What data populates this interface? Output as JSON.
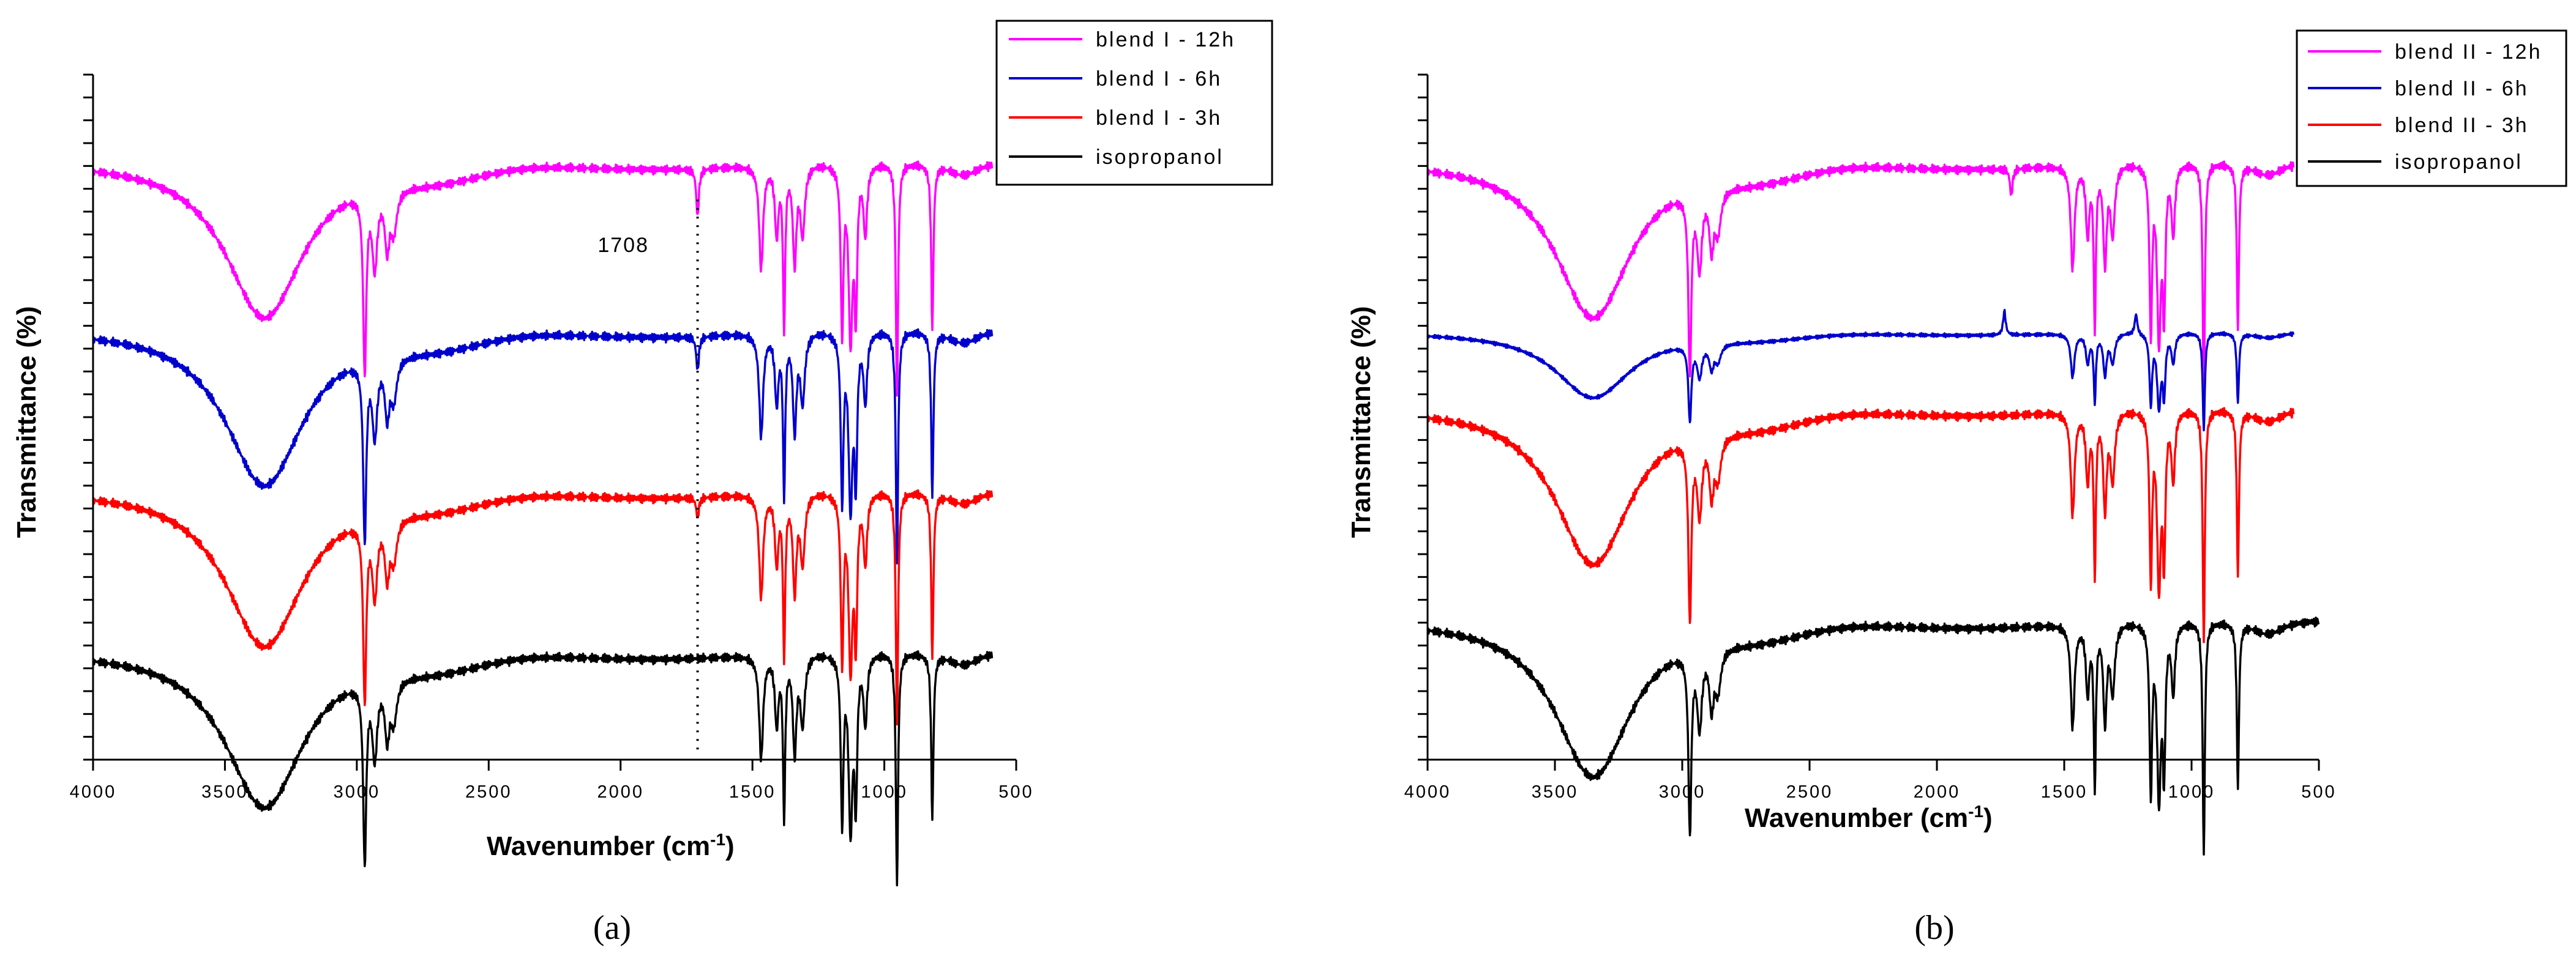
{
  "figure": {
    "panels": [
      {
        "id": "a",
        "label": "(a)"
      },
      {
        "id": "b",
        "label": "(b)"
      }
    ]
  },
  "chart_data": [
    {
      "type": "line",
      "panel": "(a)",
      "xlabel": "Wavenumber (cm-1)",
      "xlabel_main": "Wavenumber (cm",
      "xlabel_sup": "-1",
      "xlabel_end": ")",
      "ylabel": "Transmittance (%)",
      "xlim": [
        4000,
        500
      ],
      "xticks": [
        4000,
        3500,
        3000,
        2500,
        2000,
        1500,
        1000,
        500
      ],
      "xtick_labels": [
        "4000",
        "3500",
        "3000",
        "2500",
        "2000",
        "1500",
        "1000",
        "500"
      ],
      "ylim": [
        0,
        100
      ],
      "ytick_count": 30,
      "x_end": 590,
      "annotation": {
        "text": "1708",
        "wavenumber": 1708,
        "y_from": 1.5,
        "y_to": 82
      },
      "legend": [
        "blend I - 12h",
        "blend I - 6h",
        "blend I - 3h",
        "isopropanol"
      ],
      "series": [
        {
          "name": "blend I - 12h",
          "color": "#ff00ff",
          "baseline": 87.5,
          "scale": 1.0,
          "extra": [
            [
              1708,
              7
            ]
          ]
        },
        {
          "name": "blend I - 6h",
          "color": "#0000cc",
          "baseline": 63.0,
          "scale": 1.0,
          "extra": [
            [
              1708,
              5
            ]
          ]
        },
        {
          "name": "blend I - 3h",
          "color": "#ff0000",
          "baseline": 39.5,
          "scale": 1.0,
          "extra": [
            [
              1708,
              3
            ]
          ]
        },
        {
          "name": "isopropanol",
          "color": "#000000",
          "baseline": 16.0,
          "scale": 1.0,
          "extra": []
        }
      ]
    },
    {
      "type": "line",
      "panel": "(b)",
      "xlabel": "Wavenumber (cm-1)",
      "xlabel_main": "Wavenumber (cm",
      "xlabel_sup": "-1",
      "xlabel_end": ")",
      "ylabel": "Transmittance (%)",
      "xlim": [
        4000,
        500
      ],
      "xticks": [
        4000,
        3500,
        3000,
        2500,
        2000,
        1500,
        1000,
        500
      ],
      "xtick_labels": [
        "4000",
        "3500",
        "3000",
        "2500",
        "2000",
        "1500",
        "1000",
        "500"
      ],
      "ylim": [
        0,
        100
      ],
      "ytick_count": 30,
      "x_end": 600,
      "legend": [
        "blend II - 12h",
        "blend II - 6h",
        "blend II - 3h",
        "isopropanol"
      ],
      "series": [
        {
          "name": "blend II - 12h",
          "color": "#ff00ff",
          "baseline": 87.5,
          "scale": 1.0,
          "extra": [
            [
              1708,
              4
            ]
          ]
        },
        {
          "name": "blend II - 6h",
          "color": "#0000cc",
          "baseline": 62.5,
          "scale": 0.42,
          "extra": [
            [
              1735,
              -3.5
            ],
            [
              1218,
              -3
            ]
          ]
        },
        {
          "name": "blend II - 3h",
          "color": "#ff0000",
          "baseline": 51.5,
          "scale": 1.0,
          "extra": []
        },
        {
          "name": "isopropanol",
          "color": "#000000",
          "baseline": 20.5,
          "scale": 1.0,
          "extra": []
        }
      ],
      "x_end_isopropanol": 500
    }
  ]
}
